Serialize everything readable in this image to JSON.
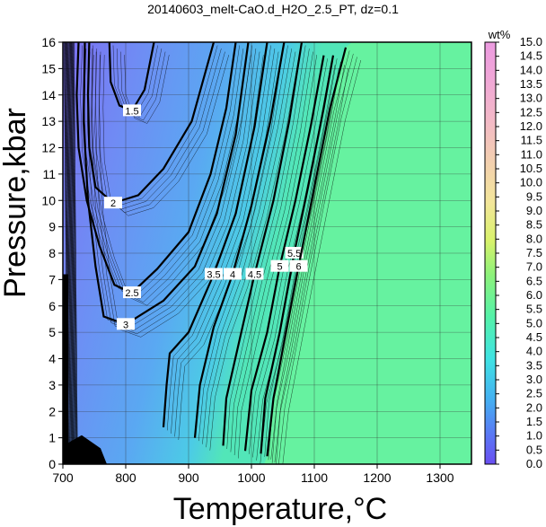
{
  "chart_data": {
    "type": "contour",
    "title": "20140603_melt-CaO.d_H2O_2.5_PT, dz=0.1",
    "xlabel": "Temperature,°C",
    "ylabel": "Pressure,kbar",
    "xlim": [
      700,
      1350
    ],
    "ylim": [
      0,
      16
    ],
    "xticks": [
      "700",
      "800",
      "900",
      "1000",
      "1100",
      "1200",
      "1300"
    ],
    "yticks": [
      "0",
      "1",
      "2",
      "3",
      "4",
      "5",
      "6",
      "7",
      "8",
      "9",
      "10",
      "11",
      "12",
      "13",
      "14",
      "15",
      "16"
    ],
    "grid": true,
    "colorbar": {
      "title": "wt%",
      "range": [
        0.0,
        15.0
      ],
      "ticks": [
        "0.0",
        "0.5",
        "1.0",
        "1.5",
        "2.0",
        "2.5",
        "3.0",
        "3.5",
        "4.0",
        "4.5",
        "5.0",
        "5.5",
        "6.0",
        "6.5",
        "7.0",
        "7.5",
        "8.0",
        "8.5",
        "9.0",
        "9.5",
        "10.0",
        "10.5",
        "11.0",
        "11.5",
        "12.0",
        "12.5",
        "13.0",
        "13.5",
        "14.0",
        "14.5",
        "15.0"
      ]
    },
    "contours": [
      {
        "level": "1.5",
        "points": [
          [
            774,
            16
          ],
          [
            776,
            14.5
          ],
          [
            790,
            13.6
          ],
          [
            810,
            13.4
          ],
          [
            830,
            14.2
          ],
          [
            845,
            16
          ]
        ]
      },
      {
        "level": "2",
        "points": [
          [
            742,
            16
          ],
          [
            740,
            14
          ],
          [
            742,
            12
          ],
          [
            752,
            10.5
          ],
          [
            780,
            9.9
          ],
          [
            820,
            10.2
          ],
          [
            860,
            11.2
          ],
          [
            905,
            13
          ],
          [
            940,
            16
          ]
        ]
      },
      {
        "level": "2.5",
        "points": [
          [
            725,
            16
          ],
          [
            722,
            14
          ],
          [
            725,
            12
          ],
          [
            738,
            10
          ],
          [
            758,
            8.3
          ],
          [
            782,
            6.8
          ],
          [
            810,
            6.5
          ],
          [
            850,
            7.4
          ],
          [
            900,
            8.8
          ],
          [
            935,
            11
          ],
          [
            960,
            13.5
          ],
          [
            975,
            16
          ]
        ]
      },
      {
        "level": "3",
        "points": [
          [
            735,
            16
          ],
          [
            733,
            13
          ],
          [
            740,
            10
          ],
          [
            752,
            7.5
          ],
          [
            765,
            5.6
          ],
          [
            800,
            5.3
          ],
          [
            860,
            6.2
          ],
          [
            910,
            7.5
          ],
          [
            945,
            9.5
          ],
          [
            975,
            12.5
          ],
          [
            995,
            16
          ]
        ]
      },
      {
        "level": "3.5",
        "points": [
          [
            860,
            1.4
          ],
          [
            865,
            3
          ],
          [
            870,
            4.2
          ],
          [
            900,
            5
          ],
          [
            940,
            7.2
          ],
          [
            975,
            9.5
          ],
          [
            1005,
            12.8
          ],
          [
            1025,
            16
          ]
        ]
      },
      {
        "level": "4",
        "points": [
          [
            910,
            1
          ],
          [
            918,
            3
          ],
          [
            940,
            5.2
          ],
          [
            970,
            7.2
          ],
          [
            1000,
            9.8
          ],
          [
            1030,
            13
          ],
          [
            1052,
            16
          ]
        ]
      },
      {
        "level": "4.5",
        "points": [
          [
            955,
            0.7
          ],
          [
            960,
            2.5
          ],
          [
            980,
            4.6
          ],
          [
            1005,
            7.2
          ],
          [
            1035,
            10
          ],
          [
            1060,
            13
          ],
          [
            1080,
            16
          ]
        ]
      },
      {
        "level": "5",
        "points": [
          [
            990,
            0.5
          ],
          [
            1000,
            2.8
          ],
          [
            1025,
            5
          ],
          [
            1045,
            7.5
          ],
          [
            1070,
            10
          ],
          [
            1095,
            12.9
          ],
          [
            1115,
            15.5
          ]
        ]
      },
      {
        "level": "5.5",
        "points": [
          [
            1015,
            0.4
          ],
          [
            1022,
            2.5
          ],
          [
            1045,
            5
          ],
          [
            1068,
            8
          ],
          [
            1090,
            10.5
          ],
          [
            1115,
            13.5
          ],
          [
            1130,
            15.5
          ]
        ]
      },
      {
        "level": "6",
        "points": [
          [
            1025,
            0.3
          ],
          [
            1035,
            2.5
          ],
          [
            1055,
            5
          ],
          [
            1075,
            7.5
          ],
          [
            1100,
            10.5
          ],
          [
            1125,
            13.5
          ],
          [
            1150,
            15.8
          ]
        ]
      }
    ]
  }
}
